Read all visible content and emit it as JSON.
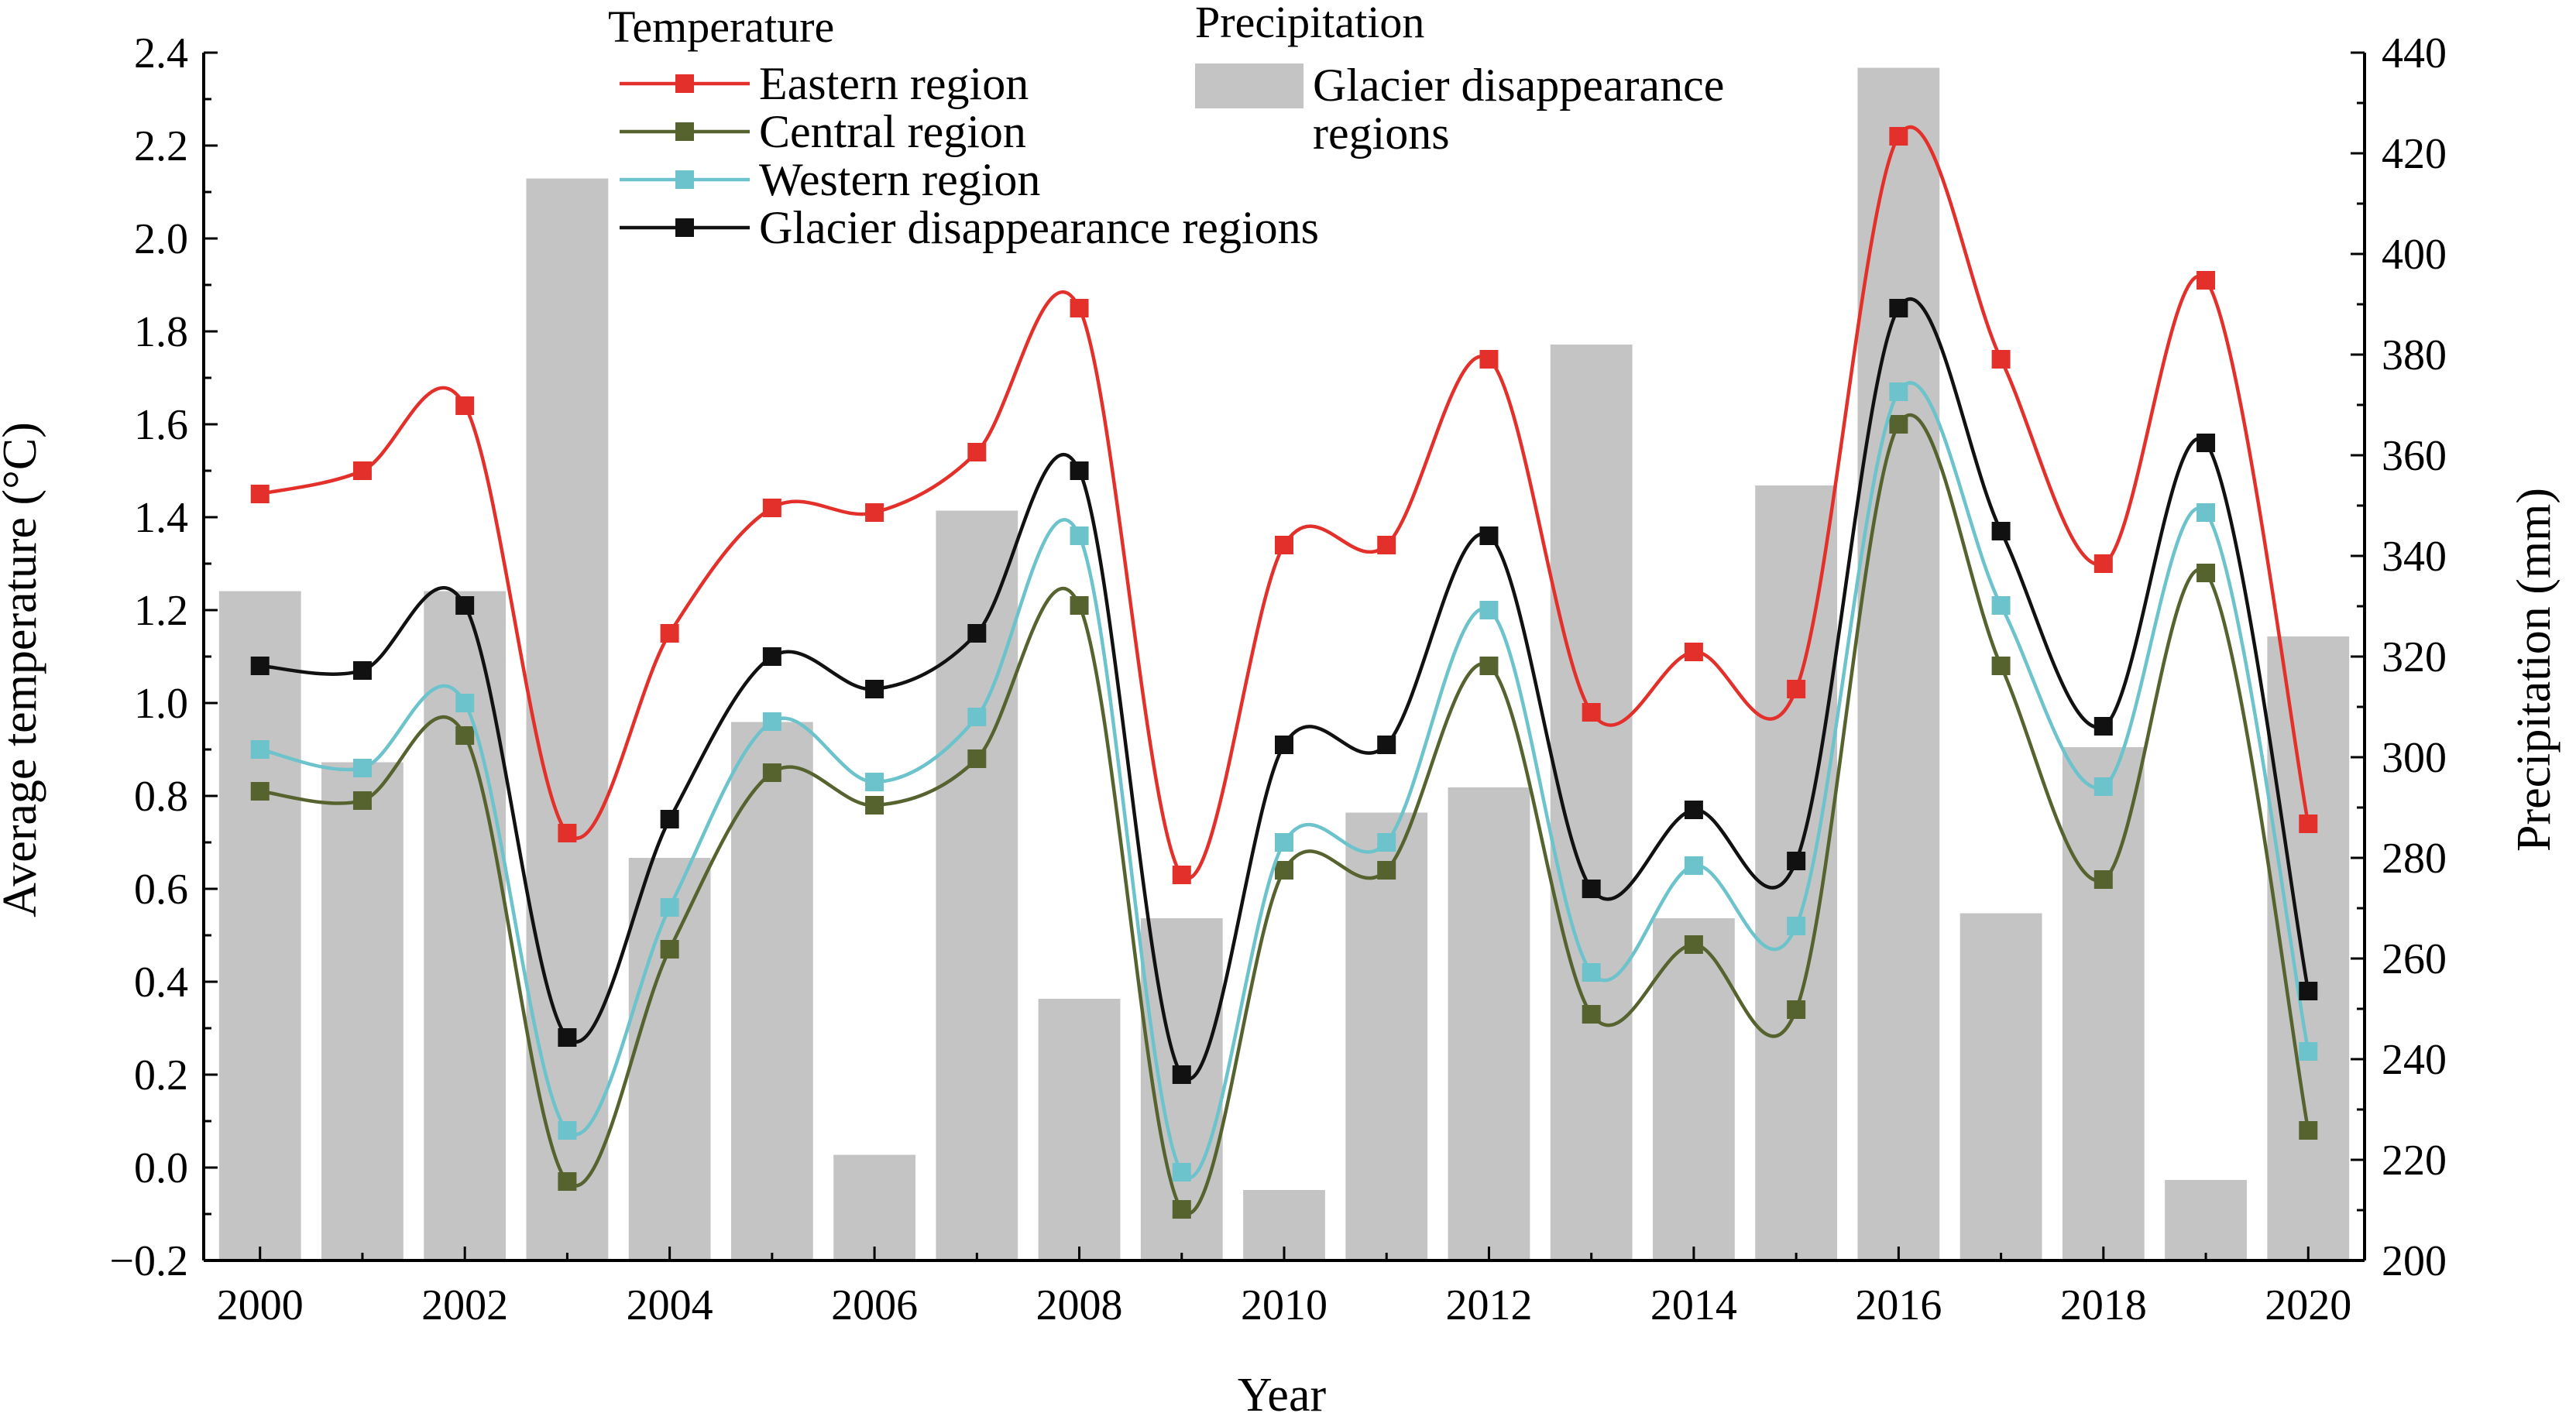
{
  "chart_data": {
    "type": "bar+line",
    "x": [
      2000,
      2001,
      2002,
      2003,
      2004,
      2005,
      2006,
      2007,
      2008,
      2009,
      2010,
      2011,
      2012,
      2013,
      2014,
      2015,
      2016,
      2017,
      2018,
      2019,
      2020
    ],
    "xlabel": "Year",
    "xticks": [
      "2000",
      "2002",
      "2004",
      "2006",
      "2008",
      "2010",
      "2012",
      "2014",
      "2016",
      "2018",
      "2020"
    ],
    "y_left": {
      "label": "Average temperature (°C)",
      "range": [
        -0.2,
        2.4
      ],
      "ticks": [
        "−0.2",
        "0.0",
        "0.2",
        "0.4",
        "0.6",
        "0.8",
        "1.0",
        "1.2",
        "1.4",
        "1.6",
        "1.8",
        "2.0",
        "2.2",
        "2.4"
      ]
    },
    "y_right": {
      "label": "Precipitation (mm)",
      "range": [
        200,
        440
      ],
      "ticks": [
        "200",
        "220",
        "240",
        "260",
        "280",
        "300",
        "320",
        "340",
        "360",
        "380",
        "400",
        "420",
        "440"
      ]
    },
    "legend": {
      "temperature_title": "Temperature",
      "precipitation_title": "Precipitation",
      "precip_label_line1": "Glacier disappearance",
      "precip_label_line2": "regions"
    },
    "bars": {
      "name": "Glacier disappearance regions",
      "axis": "right",
      "color": "#c4c4c4",
      "values": [
        333,
        299,
        333,
        415,
        280,
        307,
        221,
        349,
        252,
        268,
        214,
        289,
        294,
        382,
        268,
        354,
        437,
        269,
        302,
        216,
        324
      ]
    },
    "series": [
      {
        "name": "Eastern region",
        "color": "#e3302a",
        "values": [
          1.45,
          1.5,
          1.64,
          0.72,
          1.15,
          1.42,
          1.41,
          1.54,
          1.85,
          0.63,
          1.34,
          1.34,
          1.74,
          0.98,
          1.11,
          1.03,
          2.22,
          1.74,
          1.3,
          1.91,
          0.74
        ]
      },
      {
        "name": "Central region",
        "color": "#56632f",
        "values": [
          0.81,
          0.79,
          0.93,
          -0.03,
          0.47,
          0.85,
          0.78,
          0.88,
          1.21,
          -0.09,
          0.64,
          0.64,
          1.08,
          0.33,
          0.48,
          0.34,
          1.6,
          1.08,
          0.62,
          1.28,
          0.08
        ]
      },
      {
        "name": "Western region",
        "color": "#6cc3cc",
        "values": [
          0.9,
          0.86,
          1.0,
          0.08,
          0.56,
          0.96,
          0.83,
          0.97,
          1.36,
          -0.01,
          0.7,
          0.7,
          1.2,
          0.42,
          0.65,
          0.52,
          1.67,
          1.21,
          0.82,
          1.41,
          0.25
        ]
      },
      {
        "name": "Glacier disappearance regions",
        "color": "#111111",
        "values": [
          1.08,
          1.07,
          1.21,
          0.28,
          0.75,
          1.1,
          1.03,
          1.15,
          1.5,
          0.2,
          0.91,
          0.91,
          1.36,
          0.6,
          0.77,
          0.66,
          1.85,
          1.37,
          0.95,
          1.56,
          0.38
        ]
      }
    ]
  }
}
